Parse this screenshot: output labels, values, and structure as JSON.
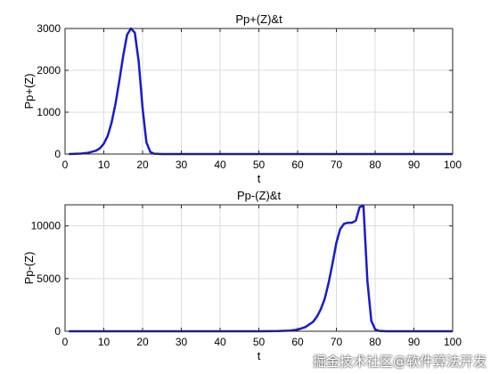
{
  "colors": {
    "line": "#1a1acc",
    "grid": "#dcdcdc",
    "axes": "#262626"
  },
  "watermark": "掘金技术社区@软件算法开发",
  "chart_data": [
    {
      "type": "line",
      "title": "Pp+(Z)&t",
      "xlabel": "t",
      "ylabel": "Pp+(Z)",
      "xlim": [
        0,
        100
      ],
      "ylim": [
        0,
        3000
      ],
      "xticks": [
        0,
        10,
        20,
        30,
        40,
        50,
        60,
        70,
        80,
        90,
        100
      ],
      "yticks": [
        0,
        1000,
        2000,
        3000
      ],
      "grid": true,
      "series": [
        {
          "x": [
            1,
            4,
            6,
            8,
            9,
            10,
            11,
            12,
            13,
            14,
            15,
            16,
            17,
            18,
            19,
            20,
            21,
            22,
            23,
            25,
            30,
            40,
            50,
            60,
            70,
            80,
            90,
            100
          ],
          "y": [
            0,
            10,
            30,
            80,
            140,
            250,
            430,
            750,
            1200,
            1750,
            2350,
            2850,
            3000,
            2900,
            2200,
            1100,
            280,
            50,
            8,
            0,
            0,
            0,
            0,
            0,
            0,
            0,
            0,
            0
          ]
        }
      ]
    },
    {
      "type": "line",
      "title": "Pp-(Z)&t",
      "xlabel": "t",
      "ylabel": "Pp-(Z)",
      "xlim": [
        0,
        100
      ],
      "ylim": [
        0,
        12000
      ],
      "xticks": [
        0,
        10,
        20,
        30,
        40,
        50,
        60,
        70,
        80,
        90,
        100
      ],
      "yticks": [
        0,
        5000,
        10000
      ],
      "grid": true,
      "series": [
        {
          "x": [
            1,
            10,
            20,
            30,
            40,
            50,
            55,
            58,
            60,
            62,
            64,
            65,
            66,
            67,
            68,
            69,
            70,
            71,
            72,
            73,
            74,
            75,
            76,
            77,
            78,
            79,
            80,
            81,
            83,
            85,
            90,
            100
          ],
          "y": [
            0,
            0,
            0,
            0,
            0,
            0,
            20,
            60,
            150,
            400,
            900,
            1400,
            2100,
            3100,
            4600,
            6400,
            8400,
            9700,
            10200,
            10300,
            10300,
            10500,
            11800,
            11900,
            4800,
            1000,
            180,
            30,
            0,
            0,
            0,
            0
          ]
        }
      ]
    }
  ]
}
